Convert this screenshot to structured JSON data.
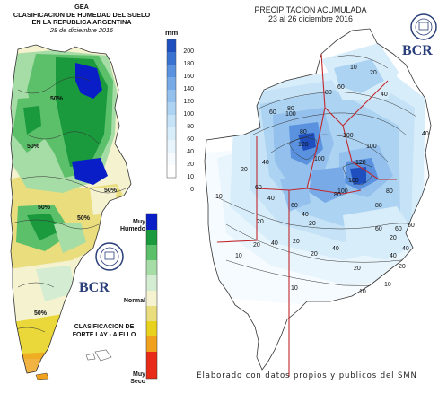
{
  "left_map": {
    "title_lines": [
      "GEA",
      "CLASIFICACION DE HUMEDAD DEL SUELO",
      "EN LA REPUBLICA ARGENTINA",
      "28 de diciembre 2016"
    ],
    "legend": {
      "top_label": [
        "Muy",
        "Humedo"
      ],
      "mid_label": "Normal",
      "bottom_label": [
        "Muy",
        "Seco"
      ],
      "colors": [
        "#0a1ec8",
        "#1a9a3c",
        "#5cc06a",
        "#a6dca6",
        "#d4edd2",
        "#f4f2cf",
        "#e9dd7e",
        "#e8d21e",
        "#f0a21e",
        "#e82a18"
      ]
    },
    "classification": [
      "CLASIFICACION DE",
      "FORTE LAY - AIELLO"
    ],
    "contour_labels": [
      "50%",
      "50%",
      "50%",
      "50%",
      "50%",
      "50%"
    ],
    "logo": {
      "text": "BCR",
      "seal_text": "BOLSA DE COMERCIO DE ROSARIO"
    }
  },
  "right_map": {
    "title_lines": [
      "PRECIPITACION ACUMULADA",
      "23 al 26 diciembre 2016"
    ],
    "colorbar": {
      "unit": "mm",
      "ticks": [
        "200",
        "180",
        "160",
        "140",
        "120",
        "100",
        "80",
        "60",
        "40",
        "20",
        "10",
        "0"
      ],
      "colors": [
        "#1f4fbf",
        "#3a72d2",
        "#5a92df",
        "#78aae7",
        "#94c0ee",
        "#add3f3",
        "#c5e2f7",
        "#d8edfa",
        "#e9f5fc",
        "#f6fbff",
        "#ffffff"
      ]
    },
    "contour_labels": [
      "20",
      "40",
      "60",
      "80",
      "100",
      "120",
      "100",
      "80",
      "60",
      "40",
      "20",
      "10",
      "20",
      "40",
      "60",
      "80",
      "100",
      "120",
      "100",
      "80",
      "60",
      "40",
      "20",
      "10",
      "60",
      "80",
      "100",
      "40",
      "20",
      "10",
      "20",
      "40",
      "60",
      "10",
      "20",
      "40",
      "60",
      "80",
      "100",
      "20",
      "40",
      "20",
      "10",
      "10",
      "20",
      "40"
    ],
    "footer": "Elaborado con datos propios y publicos del SMN",
    "logo": {
      "text": "BCR",
      "seal_text": "BOLSA DE COMERCIO DE ROSARIO"
    }
  }
}
